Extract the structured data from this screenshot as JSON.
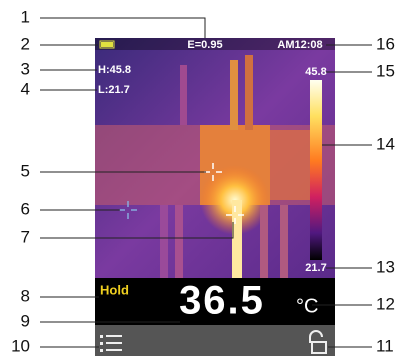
{
  "screen": {
    "emissivity": "E=0.95",
    "time": "AM12:08",
    "high": "H:45.8",
    "low": "L:21.7",
    "scale_max": "45.8",
    "scale_min": "21.7",
    "hold": "Hold",
    "reading": "36.5",
    "unit": "°C"
  },
  "callouts": [
    {
      "label": "1"
    },
    {
      "label": "2"
    },
    {
      "label": "3"
    },
    {
      "label": "4"
    },
    {
      "label": "5"
    },
    {
      "label": "6"
    },
    {
      "label": "7"
    },
    {
      "label": "8"
    },
    {
      "label": "9"
    },
    {
      "label": "10"
    },
    {
      "label": "11"
    },
    {
      "label": "12"
    },
    {
      "label": "13"
    },
    {
      "label": "14"
    },
    {
      "label": "15"
    },
    {
      "label": "16"
    }
  ]
}
